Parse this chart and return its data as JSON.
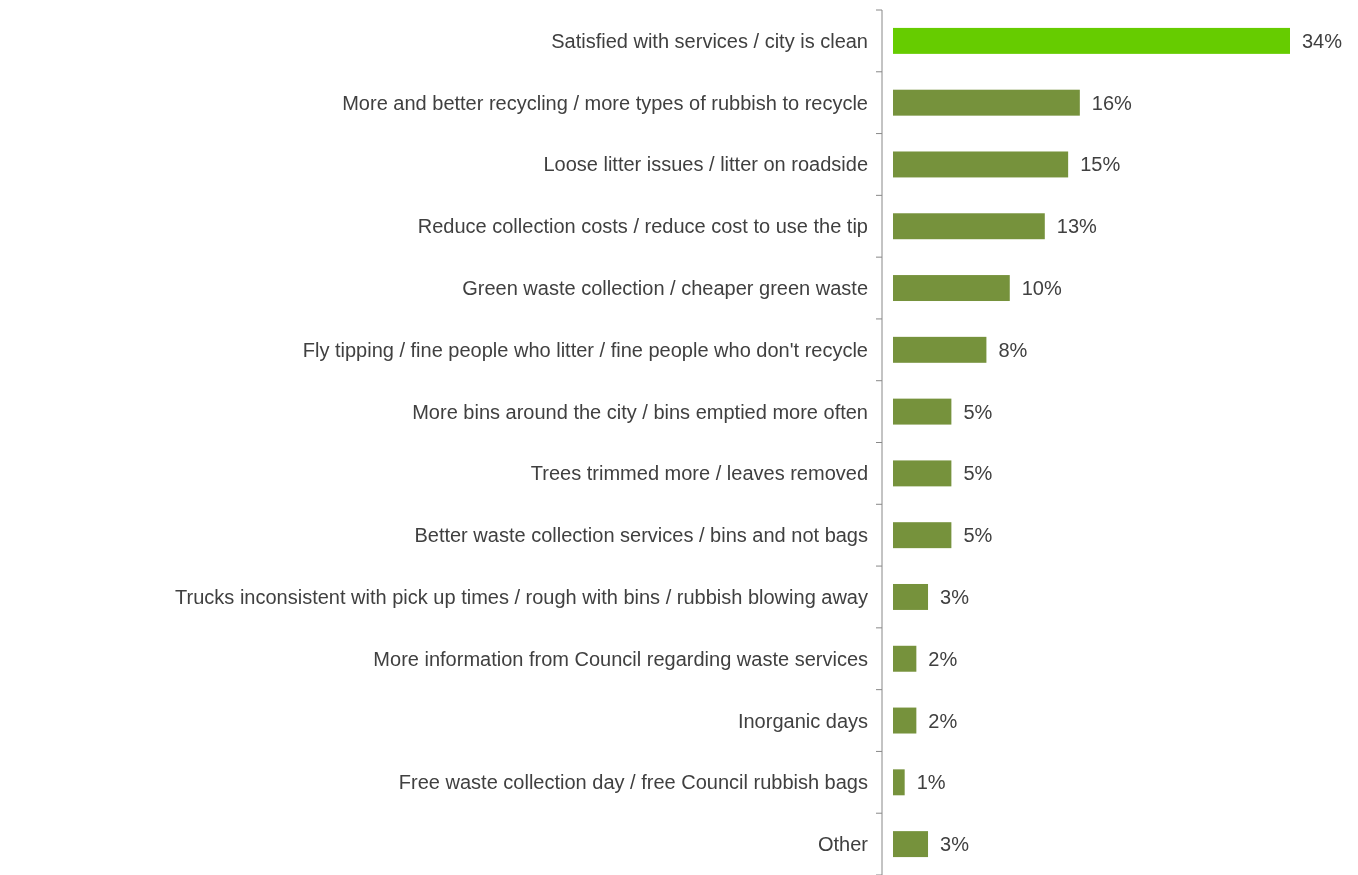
{
  "chart_data": {
    "type": "bar",
    "orientation": "horizontal",
    "categories": [
      "Satisfied with services / city is clean",
      "More and better recycling / more types of rubbish to recycle",
      "Loose litter issues / litter on roadside",
      "Reduce collection costs / reduce cost to use the tip",
      "Green waste collection / cheaper green waste",
      "Fly tipping / fine people who litter / fine people who don't recycle",
      "More bins around the city / bins emptied more often",
      "Trees trimmed more / leaves removed",
      "Better waste collection services / bins and not bags",
      "Trucks inconsistent with pick up times / rough with bins / rubbish blowing away",
      "More information from Council regarding waste services",
      "Inorganic days",
      "Free waste collection day / free Council rubbish bags",
      "Other"
    ],
    "values": [
      34,
      16,
      15,
      13,
      10,
      8,
      5,
      5,
      5,
      3,
      2,
      2,
      1,
      3
    ],
    "colors": [
      "#66cc00",
      "#76923c",
      "#76923c",
      "#76923c",
      "#76923c",
      "#76923c",
      "#76923c",
      "#76923c",
      "#76923c",
      "#76923c",
      "#76923c",
      "#76923c",
      "#76923c",
      "#76923c"
    ],
    "value_labels": [
      "34%",
      "16%",
      "15%",
      "13%",
      "10%",
      "8%",
      "5%",
      "5%",
      "5%",
      "3%",
      "2%",
      "2%",
      "1%",
      "3%"
    ]
  }
}
